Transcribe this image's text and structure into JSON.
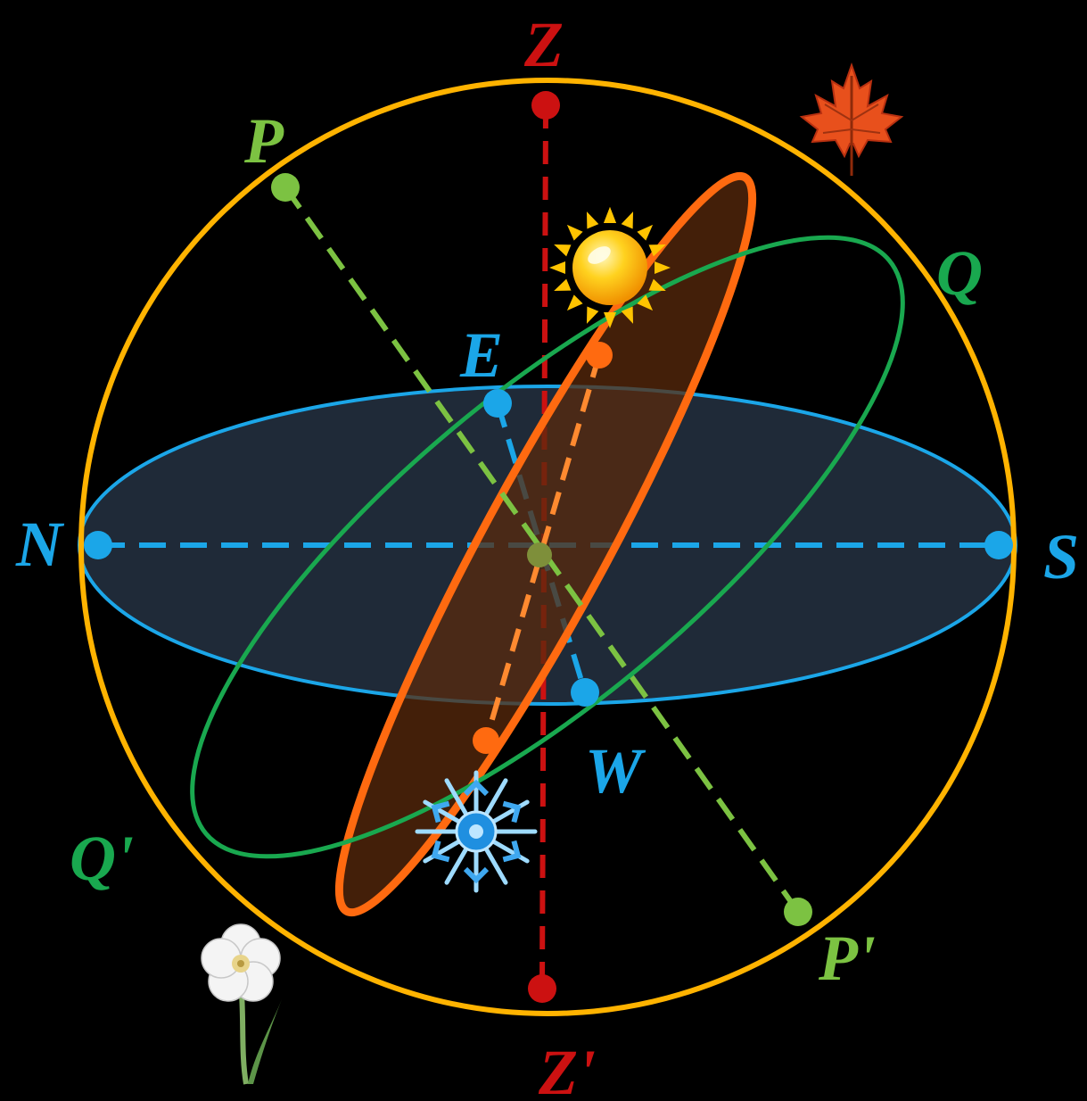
{
  "labels": {
    "zenith": "Z",
    "nadir": "Z'",
    "north_celestial_pole": "P",
    "south_celestial_pole": "P'",
    "equator_top": "Q",
    "equator_bottom": "Q'",
    "east": "E",
    "west": "W",
    "north": "N",
    "south": "S"
  },
  "colors": {
    "background": "#000000",
    "celestial_sphere": "#FFB300",
    "zenith_axis": "#CC1111",
    "polar_axis": "#7CC242",
    "celestial_equator": "#19A84F",
    "horizon": "#1BA6E8",
    "horizon_fill": "#1F2A38",
    "ecliptic": "#FF6A10",
    "ecliptic_fill": "#5A2A0C"
  },
  "icons": {
    "summer": "sun-icon",
    "autumn": "maple-leaf-icon",
    "winter": "snowflake-icon",
    "spring": "flower-icon"
  }
}
